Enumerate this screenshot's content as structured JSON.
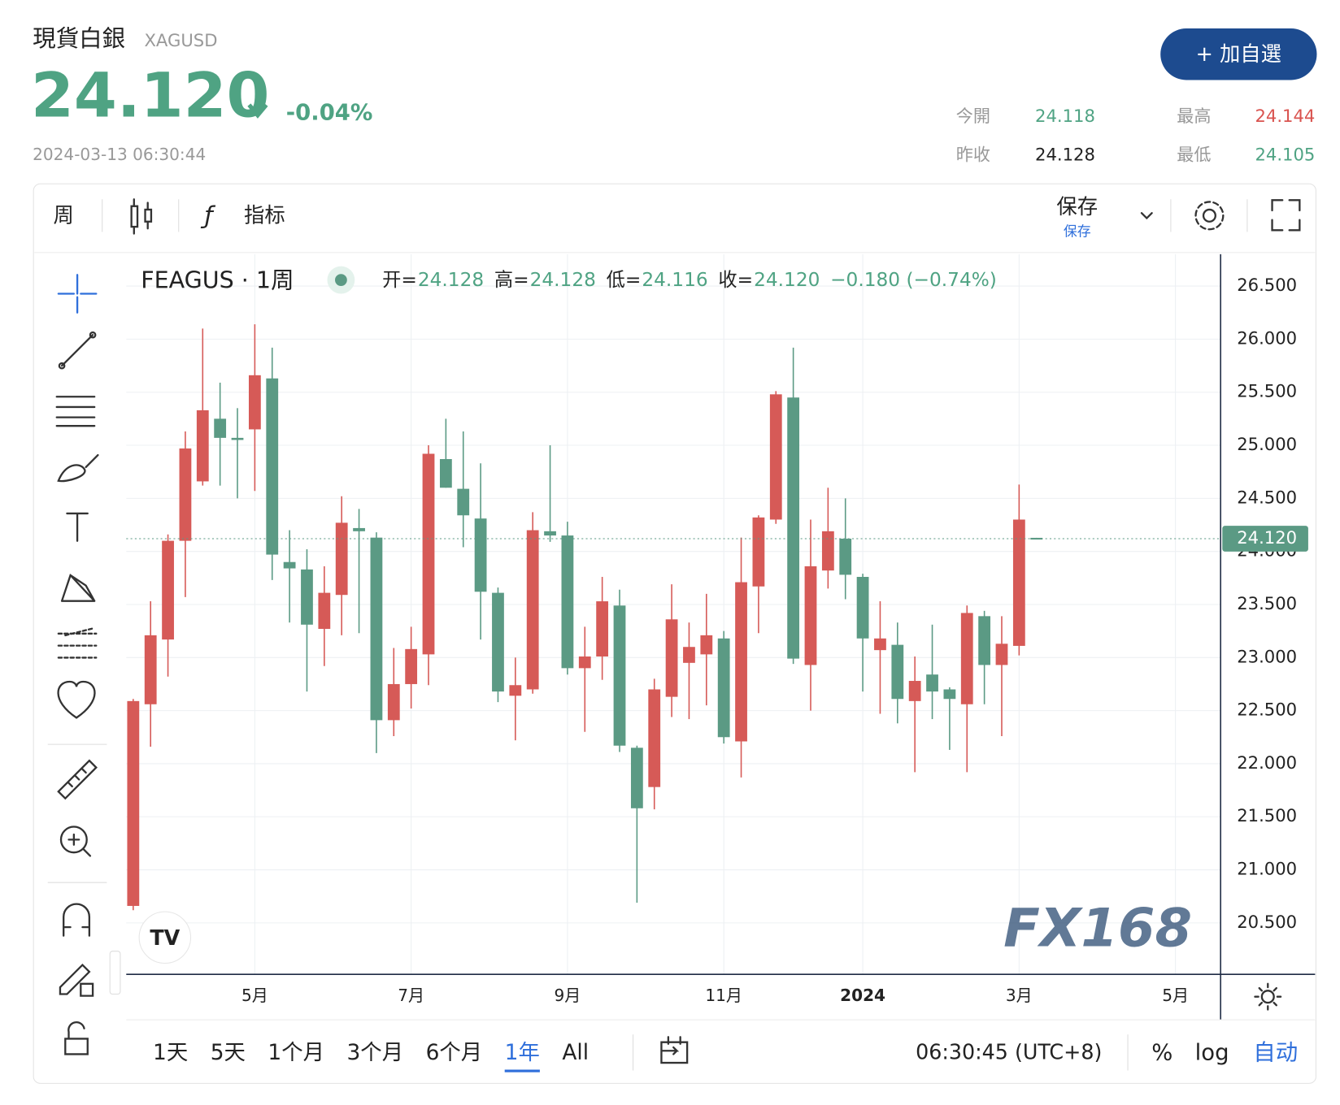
{
  "header": {
    "title": "現貨白銀",
    "symbol": "XAGUSD",
    "price": "24.120",
    "change": "-0.04%",
    "timestamp": "2024-03-13 06:30:44",
    "button": "+ 加自選"
  },
  "stats": [
    {
      "label": "今開",
      "value": "24.118",
      "color": "#4fa383"
    },
    {
      "label": "昨收",
      "value": "24.128",
      "color": "#222222"
    },
    {
      "label": "最高",
      "value": "24.144",
      "color": "#d9534f"
    },
    {
      "label": "最低",
      "value": "24.105",
      "color": "#4fa383"
    }
  ],
  "toolbar": {
    "interval": "周",
    "indicators": "指标",
    "save": "保存",
    "save_sub": "保存"
  },
  "chart_data": {
    "type": "candlestick",
    "title": "FEAGUS · 1周",
    "legend": [
      {
        "label": "开=",
        "value": "24.128"
      },
      {
        "label": "高=",
        "value": "24.128"
      },
      {
        "label": "低=",
        "value": "24.116"
      },
      {
        "label": "收=",
        "value": "24.120"
      }
    ],
    "legend_change": "−0.180 (−0.74%)",
    "last_label": "24.120",
    "watermark": "FX168",
    "up_color": "#d65a57",
    "down_color": "#5b9a84",
    "open": [
      20.66,
      22.56,
      23.17,
      24.1,
      24.66,
      25.25,
      25.07,
      25.15,
      25.63,
      23.9,
      23.83,
      23.27,
      23.59,
      24.22,
      24.13,
      22.41,
      22.75,
      23.03,
      24.87,
      24.59,
      24.31,
      23.61,
      22.64,
      22.7,
      24.19,
      24.15,
      22.9,
      23.01,
      23.49,
      22.15,
      21.78,
      22.63,
      22.95,
      23.03,
      23.18,
      22.21,
      23.67,
      24.3,
      25.45,
      22.93,
      23.82,
      24.12,
      23.76,
      23.07,
      23.12,
      22.59,
      22.84,
      22.7,
      22.56,
      23.39,
      22.93,
      23.11,
      24.128
    ],
    "high": [
      22.61,
      23.53,
      24.16,
      25.13,
      26.1,
      25.59,
      25.35,
      26.14,
      25.92,
      24.2,
      24.02,
      23.86,
      24.52,
      24.4,
      24.18,
      23.09,
      23.29,
      25.0,
      25.25,
      25.13,
      24.83,
      23.66,
      23.0,
      24.37,
      25.0,
      24.28,
      23.29,
      23.76,
      23.64,
      22.17,
      22.8,
      23.69,
      23.33,
      23.6,
      23.25,
      24.13,
      24.34,
      25.51,
      25.92,
      24.3,
      24.6,
      24.5,
      23.79,
      23.53,
      23.33,
      23.01,
      23.31,
      22.72,
      23.49,
      23.44,
      23.39,
      24.63,
      24.128
    ],
    "low": [
      20.62,
      22.16,
      22.82,
      23.57,
      24.62,
      24.62,
      24.5,
      24.57,
      23.73,
      23.33,
      22.68,
      22.92,
      23.21,
      23.23,
      22.1,
      22.26,
      22.52,
      22.74,
      24.6,
      24.04,
      23.17,
      22.58,
      22.22,
      22.66,
      24.09,
      22.84,
      22.3,
      22.79,
      22.11,
      20.69,
      21.57,
      22.44,
      22.42,
      22.55,
      22.19,
      21.87,
      23.23,
      24.26,
      22.94,
      22.5,
      23.65,
      23.55,
      22.68,
      22.47,
      22.38,
      21.92,
      22.42,
      22.13,
      21.92,
      22.56,
      22.26,
      23.02,
      24.116
    ],
    "close": [
      22.59,
      23.21,
      24.1,
      24.97,
      25.33,
      25.07,
      25.05,
      25.66,
      23.97,
      23.84,
      23.31,
      23.61,
      24.27,
      24.19,
      22.41,
      22.75,
      23.08,
      24.92,
      24.6,
      24.34,
      23.62,
      22.68,
      22.74,
      24.2,
      24.15,
      22.9,
      23.01,
      23.53,
      22.17,
      21.58,
      22.7,
      23.36,
      23.1,
      23.21,
      22.25,
      23.71,
      24.32,
      25.48,
      22.99,
      23.86,
      24.19,
      23.78,
      23.18,
      23.18,
      22.61,
      22.78,
      22.68,
      22.61,
      23.42,
      22.93,
      23.13,
      24.3,
      24.12
    ],
    "xlim": [
      -0.4,
      62.6
    ],
    "xticks": [
      {
        "value": 7,
        "label": "5月"
      },
      {
        "value": 16,
        "label": "7月"
      },
      {
        "value": 25,
        "label": "9月"
      },
      {
        "value": 34,
        "label": "11月"
      },
      {
        "value": 42,
        "label": "2024"
      },
      {
        "value": 51,
        "label": "3月"
      },
      {
        "value": 60,
        "label": "5月"
      }
    ],
    "ylim": [
      20.015,
      26.8
    ],
    "yticks": [
      {
        "value": 20.5,
        "label": "20.500"
      },
      {
        "value": 21,
        "label": "21.000"
      },
      {
        "value": 21.5,
        "label": "21.500"
      },
      {
        "value": 22,
        "label": "22.000"
      },
      {
        "value": 22.5,
        "label": "22.500"
      },
      {
        "value": 23,
        "label": "23.000"
      },
      {
        "value": 23.5,
        "label": "23.500"
      },
      {
        "value": 24,
        "label": "24.000"
      },
      {
        "value": 24.5,
        "label": "24.500"
      },
      {
        "value": 25,
        "label": "25.000"
      },
      {
        "value": 25.5,
        "label": "25.500"
      },
      {
        "value": 26,
        "label": "26.000"
      },
      {
        "value": 26.5,
        "label": "26.500"
      }
    ],
    "grid": true
  },
  "ranges": [
    "1天",
    "5天",
    "1个月",
    "3个月",
    "6个月",
    "1年",
    "All"
  ],
  "selected_range": 5,
  "footer": {
    "time": "06:30:45 (UTC+8)",
    "percent": "%",
    "log": "log",
    "auto": "自动"
  }
}
